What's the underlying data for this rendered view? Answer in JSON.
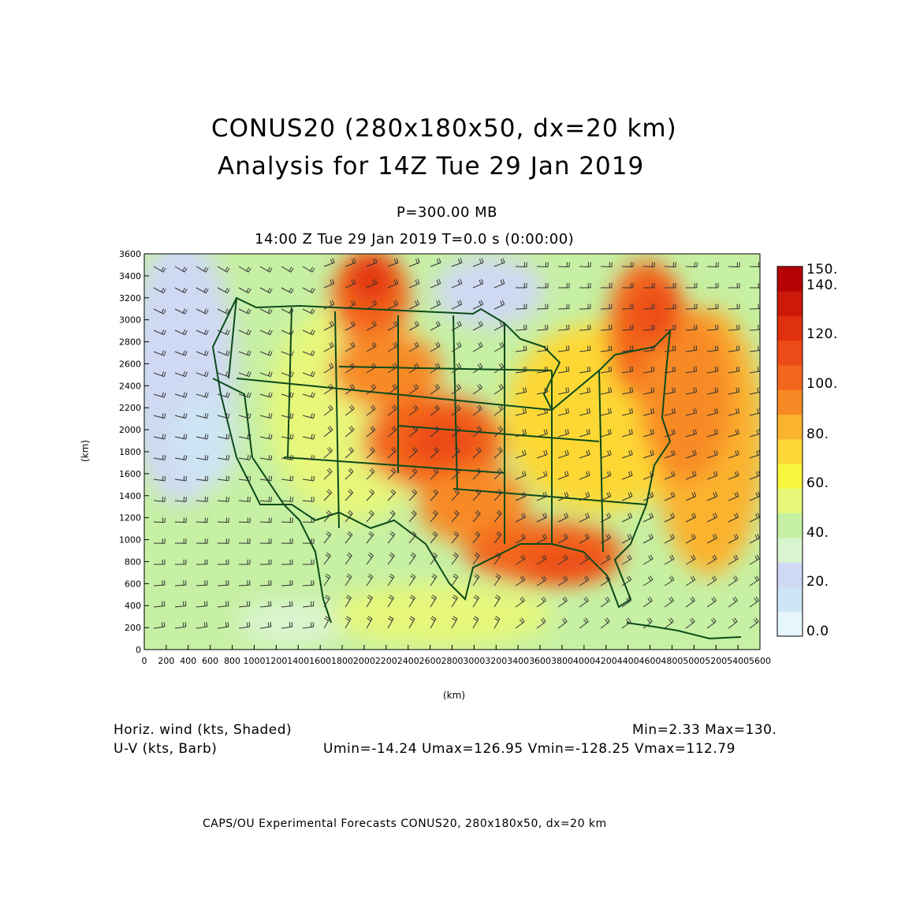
{
  "title": {
    "line1": "CONUS20 (280x180x50, dx=20 km)",
    "line2": "Analysis for 14Z Tue 29 Jan 2019"
  },
  "level": "P=300.00 MB",
  "valid_time": "14:00 Z Tue 29 Jan 2019    T=0.0 s (0:00:00)",
  "axes": {
    "x_label": "(km)",
    "y_label": "(km)",
    "x_ticks": [
      0,
      200,
      400,
      600,
      800,
      1000,
      1200,
      1400,
      1600,
      1800,
      2000,
      2200,
      2400,
      2600,
      2800,
      3000,
      3200,
      3400,
      3600,
      3800,
      4000,
      4200,
      4400,
      4600,
      4800,
      5000,
      5200,
      5400,
      5600
    ],
    "y_ticks": [
      0,
      200,
      400,
      600,
      800,
      1000,
      1200,
      1400,
      1600,
      1800,
      2000,
      2200,
      2400,
      2600,
      2800,
      3000,
      3200,
      3400,
      3600
    ],
    "x_range": [
      0,
      5600
    ],
    "y_range": [
      0,
      3600
    ]
  },
  "colorbar": {
    "labels": [
      "150.",
      "140.",
      "120.",
      "100.",
      "80.",
      "60.",
      "40.",
      "20.",
      "0.0"
    ],
    "levels": [
      0,
      10,
      20,
      30,
      40,
      50,
      60,
      70,
      80,
      90,
      100,
      110,
      120,
      130,
      140,
      150
    ],
    "colors": [
      "#e6f7fb",
      "#cde5f5",
      "#cfd9f3",
      "#d9f5cf",
      "#c6f0a3",
      "#e6f77a",
      "#f6f63c",
      "#fdd836",
      "#fbb22e",
      "#f88a26",
      "#f3661e",
      "#ec4a16",
      "#e0310e",
      "#cc1908",
      "#b50303"
    ]
  },
  "legend": {
    "left_line1": "Horiz. wind (kts, Shaded)",
    "left_line2": "U-V (kts, Barb)",
    "right_line1": "Min=2.33 Max=130.",
    "right_line2": "Umin=-14.24 Umax=126.95 Vmin=-128.25 Vmax=112.79"
  },
  "footer": "CAPS/OU Experimental Forecasts  CONUS20, 280x180x50, dx=20 km"
}
